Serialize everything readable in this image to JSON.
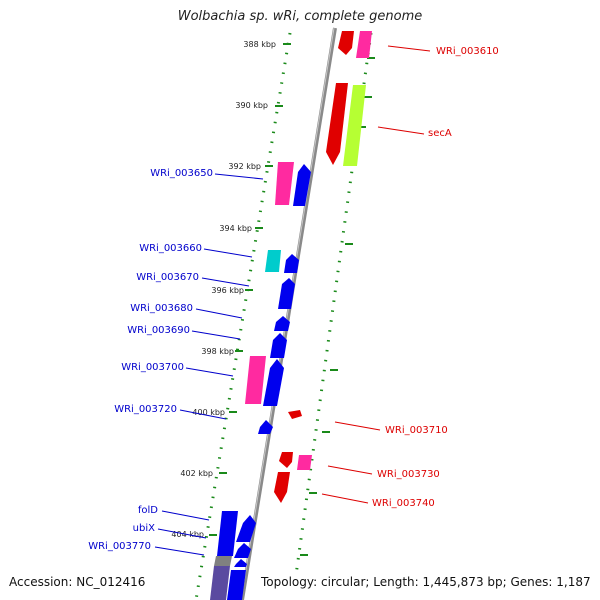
{
  "title": "Wolbachia sp. wRi, complete genome",
  "footer": {
    "accession": "Accession: NC_012416",
    "summary": "Topology: circular; Length: 1,445,873 bp; Genes: 1,187"
  },
  "colors": {
    "backbone": "#8a8a8a",
    "tick": "#1a8a1a",
    "label_forward": "#0000cc",
    "label_reverse": "#dd0000"
  },
  "scale_labels": [
    "388 kbp",
    "390 kbp",
    "392 kbp",
    "394 kbp",
    "396 kbp",
    "398 kbp",
    "400 kbp",
    "402 kbp",
    "404 kbp"
  ],
  "gene_labels_left": [
    "WRi_003650",
    "WRi_003660",
    "WRi_003670",
    "WRi_003680",
    "WRi_003690",
    "WRi_003700",
    "WRi_003720",
    "folD",
    "ubiX",
    "WRi_003770"
  ],
  "gene_labels_right": [
    "WRi_003610",
    "secA",
    "WRi_003710",
    "WRi_003730",
    "WRi_003740"
  ]
}
